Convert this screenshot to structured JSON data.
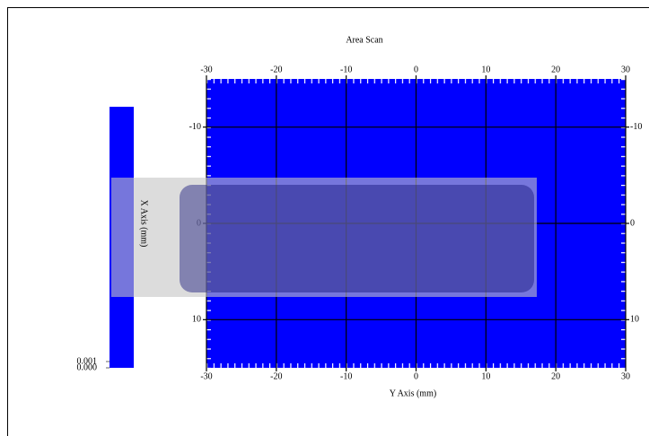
{
  "chart_data": {
    "type": "heatmap",
    "title": "Area Scan",
    "xlabel": "Y Axis (mm)",
    "ylabel": "X Axis (mm)",
    "xlim": [
      -30,
      30
    ],
    "xticks": [
      -30,
      -20,
      -10,
      0,
      10,
      20,
      30
    ],
    "ylim": [
      -15,
      15
    ],
    "yticks": [
      -10,
      0,
      10
    ],
    "color": "#0000ff",
    "grid": true,
    "colorbar": {
      "color": "#0000ff",
      "ticks": [
        {
          "value": 0.001,
          "label": "0.001"
        },
        {
          "value": 0,
          "label": "0.000"
        }
      ]
    }
  }
}
